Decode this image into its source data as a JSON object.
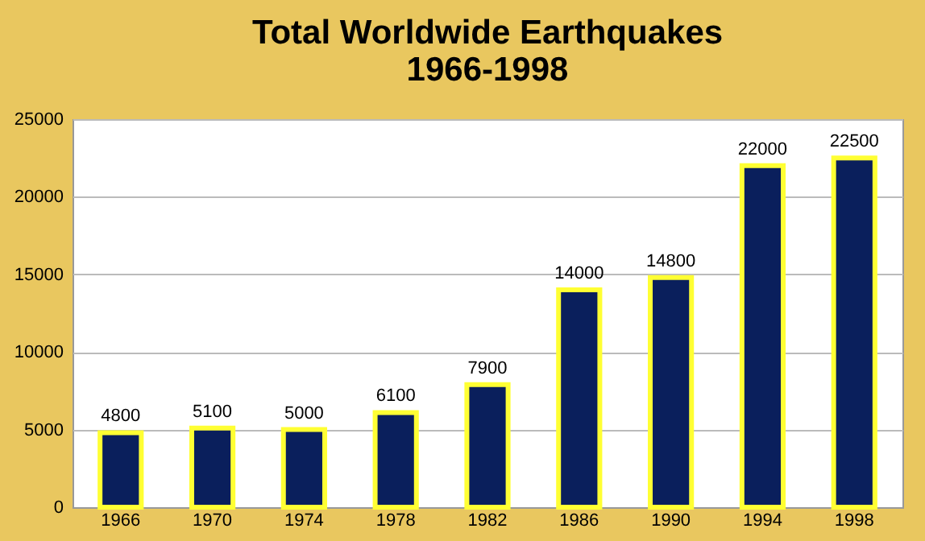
{
  "chart_data": {
    "type": "bar",
    "title": "Total Worldwide Earthquakes\n1966-1998",
    "categories": [
      "1966",
      "1970",
      "1974",
      "1978",
      "1982",
      "1986",
      "1990",
      "1994",
      "1998"
    ],
    "values": [
      4800,
      5100,
      5000,
      6100,
      7900,
      14000,
      14800,
      22000,
      22500
    ],
    "color": "#0a1f5c",
    "ylim": [
      0,
      25000
    ],
    "yticks": [
      0,
      5000,
      10000,
      15000,
      20000,
      25000
    ],
    "grid": "y",
    "data_labels": true
  }
}
